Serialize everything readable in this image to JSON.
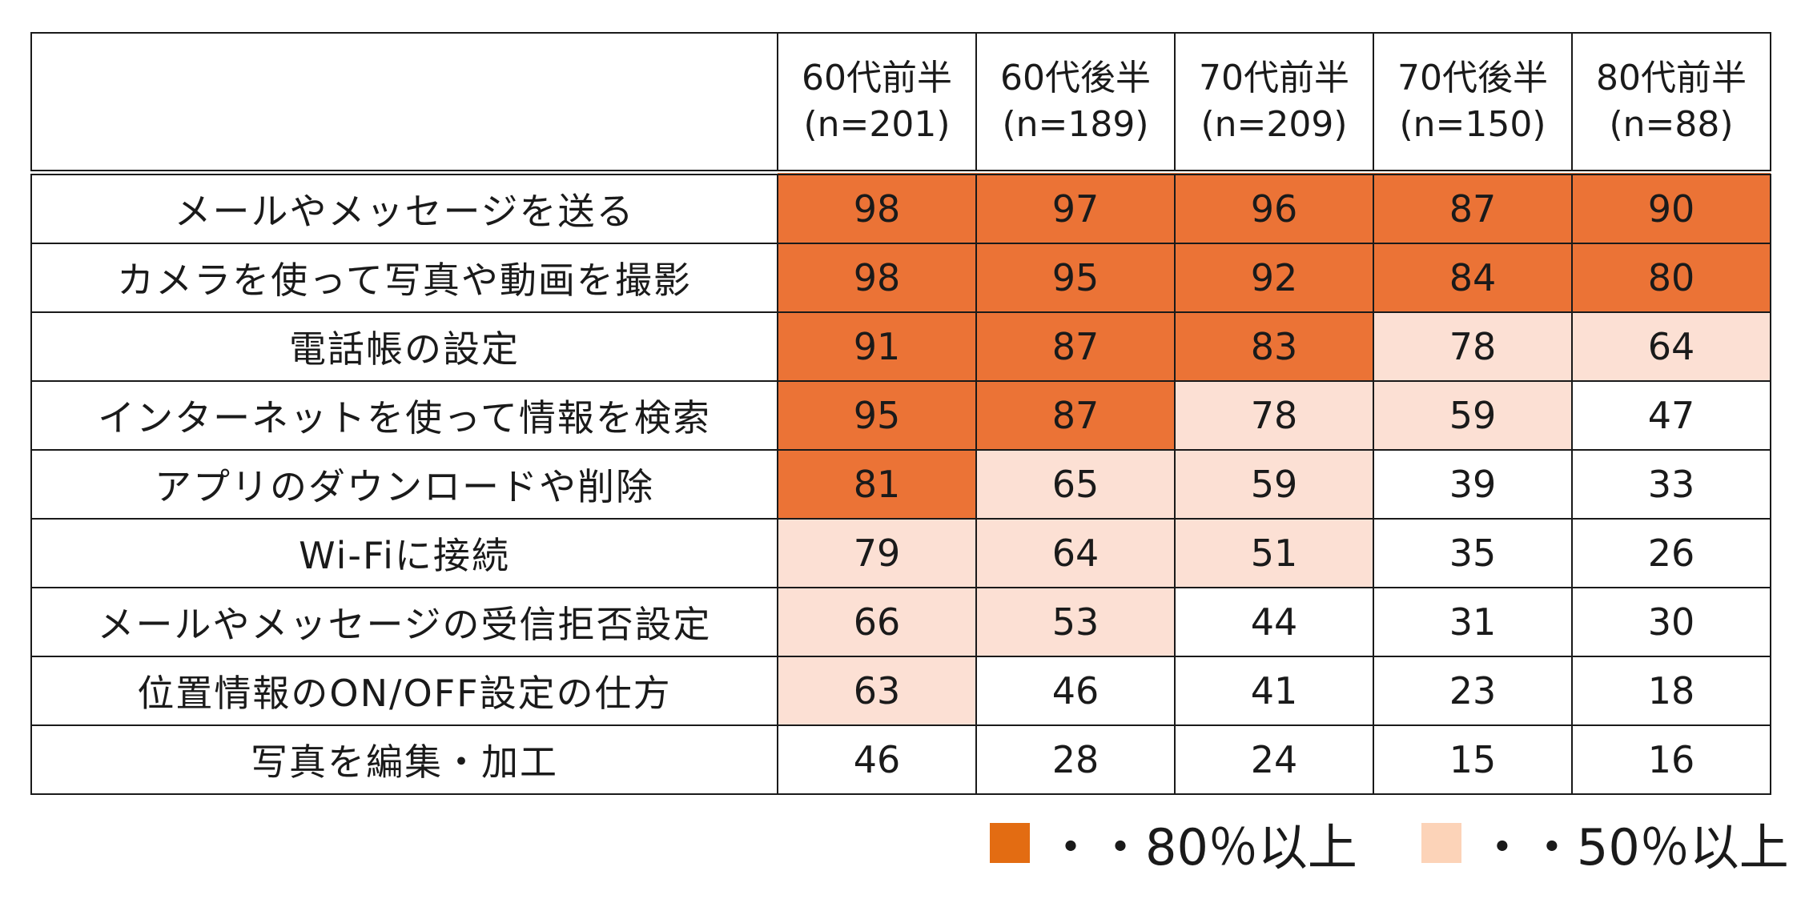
{
  "chart_data": {
    "type": "heatmap",
    "columns": [
      {
        "label": "60代前半",
        "n": "(n=201)"
      },
      {
        "label": "60代後半",
        "n": "(n=189)"
      },
      {
        "label": "70代前半",
        "n": "(n=209)"
      },
      {
        "label": "70代後半",
        "n": "(n=150)"
      },
      {
        "label": "80代前半",
        "n": "(n=88)"
      }
    ],
    "rows": [
      {
        "label": "メールやメッセージを送る",
        "values": [
          98,
          97,
          96,
          87,
          90
        ]
      },
      {
        "label": "カメラを使って写真や動画を撮影",
        "values": [
          98,
          95,
          92,
          84,
          80
        ]
      },
      {
        "label": "電話帳の設定",
        "values": [
          91,
          87,
          83,
          78,
          64
        ]
      },
      {
        "label": "インターネットを使って情報を検索",
        "values": [
          95,
          87,
          78,
          59,
          47
        ]
      },
      {
        "label": "アプリのダウンロードや削除",
        "values": [
          81,
          65,
          59,
          39,
          33
        ]
      },
      {
        "label": "Wi-Fiに接続",
        "values": [
          79,
          64,
          51,
          35,
          26
        ]
      },
      {
        "label": "メールやメッセージの受信拒否設定",
        "values": [
          66,
          53,
          44,
          31,
          30
        ]
      },
      {
        "label": "位置情報のON/OFF設定の仕方",
        "values": [
          63,
          46,
          41,
          23,
          18
        ]
      },
      {
        "label": "写真を編集・加工",
        "values": [
          46,
          28,
          24,
          15,
          16
        ]
      }
    ],
    "thresholds": {
      "high": 80,
      "mid": 50
    },
    "colors": {
      "high": "#eb7336",
      "mid": "#fce0d4",
      "low": "#ffffff"
    },
    "legend": [
      {
        "label": "・・80％以上",
        "color": "#e36c12"
      },
      {
        "label": "・・50％以上",
        "color": "#fcd3b8"
      }
    ]
  }
}
